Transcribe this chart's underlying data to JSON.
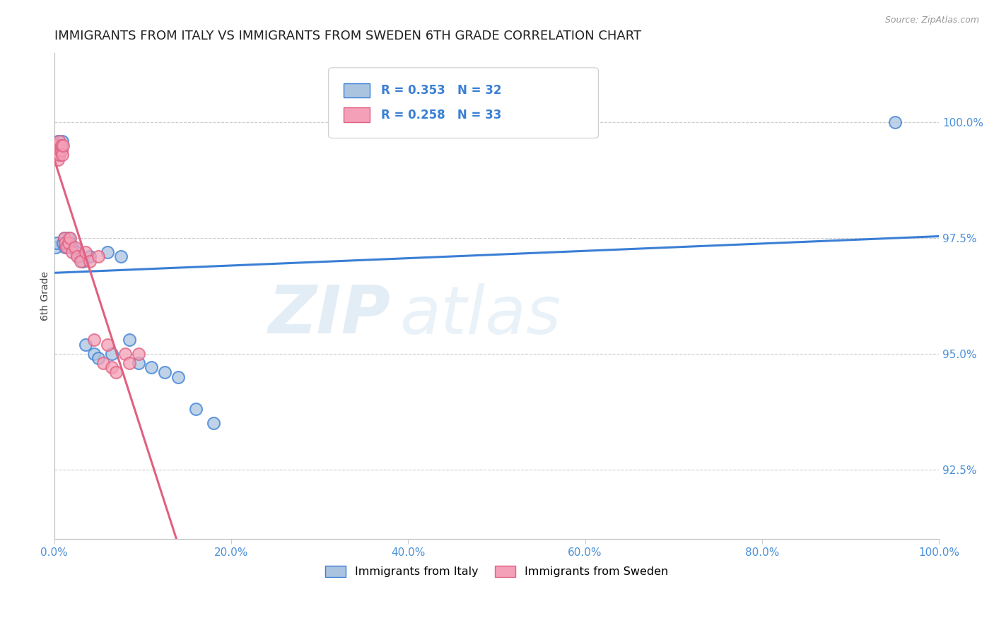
{
  "title": "IMMIGRANTS FROM ITALY VS IMMIGRANTS FROM SWEDEN 6TH GRADE CORRELATION CHART",
  "source": "Source: ZipAtlas.com",
  "ylabel": "6th Grade",
  "xlim": [
    0.0,
    100.0
  ],
  "ylim": [
    91.0,
    101.5
  ],
  "yticks": [
    92.5,
    95.0,
    97.5,
    100.0
  ],
  "xticks": [
    0.0,
    20.0,
    40.0,
    60.0,
    80.0,
    100.0
  ],
  "italy_color": "#aac4e0",
  "sweden_color": "#f4a0b8",
  "italy_line_color": "#3a7fd5",
  "sweden_line_color": "#e06080",
  "italy_R": 0.353,
  "italy_N": 32,
  "sweden_R": 0.258,
  "sweden_N": 33,
  "italy_x": [
    0.15,
    0.3,
    0.4,
    0.5,
    0.7,
    0.8,
    0.9,
    1.0,
    1.1,
    1.2,
    1.5,
    1.6,
    1.8,
    2.0,
    2.5,
    2.8,
    3.2,
    3.5,
    4.0,
    4.5,
    5.0,
    6.0,
    6.5,
    7.5,
    8.5,
    9.5,
    11.0,
    12.5,
    14.0,
    16.0,
    18.0,
    95.0
  ],
  "italy_y": [
    97.3,
    97.4,
    99.6,
    99.4,
    99.5,
    99.4,
    99.6,
    97.4,
    97.5,
    97.3,
    97.3,
    97.5,
    97.4,
    97.3,
    97.2,
    97.1,
    97.0,
    95.2,
    97.1,
    95.0,
    94.9,
    97.2,
    95.0,
    97.1,
    95.3,
    94.8,
    94.7,
    94.6,
    94.5,
    93.8,
    93.5,
    100.0
  ],
  "sweden_x": [
    0.1,
    0.2,
    0.3,
    0.35,
    0.4,
    0.5,
    0.55,
    0.6,
    0.7,
    0.8,
    0.85,
    0.9,
    1.0,
    1.1,
    1.2,
    1.4,
    1.6,
    1.8,
    2.0,
    2.3,
    2.6,
    3.0,
    3.5,
    4.0,
    4.5,
    5.0,
    5.5,
    6.0,
    6.5,
    7.0,
    8.0,
    8.5,
    9.5
  ],
  "sweden_y": [
    99.5,
    99.4,
    99.5,
    99.3,
    99.2,
    99.5,
    99.3,
    99.6,
    99.4,
    99.4,
    99.5,
    99.3,
    99.5,
    97.5,
    97.4,
    97.3,
    97.4,
    97.5,
    97.2,
    97.3,
    97.1,
    97.0,
    97.2,
    97.0,
    95.3,
    97.1,
    94.8,
    95.2,
    94.7,
    94.6,
    95.0,
    94.8,
    95.0
  ],
  "background_color": "#ffffff",
  "grid_color": "#cccccc",
  "title_fontsize": 13,
  "label_fontsize": 10,
  "tick_fontsize": 11
}
